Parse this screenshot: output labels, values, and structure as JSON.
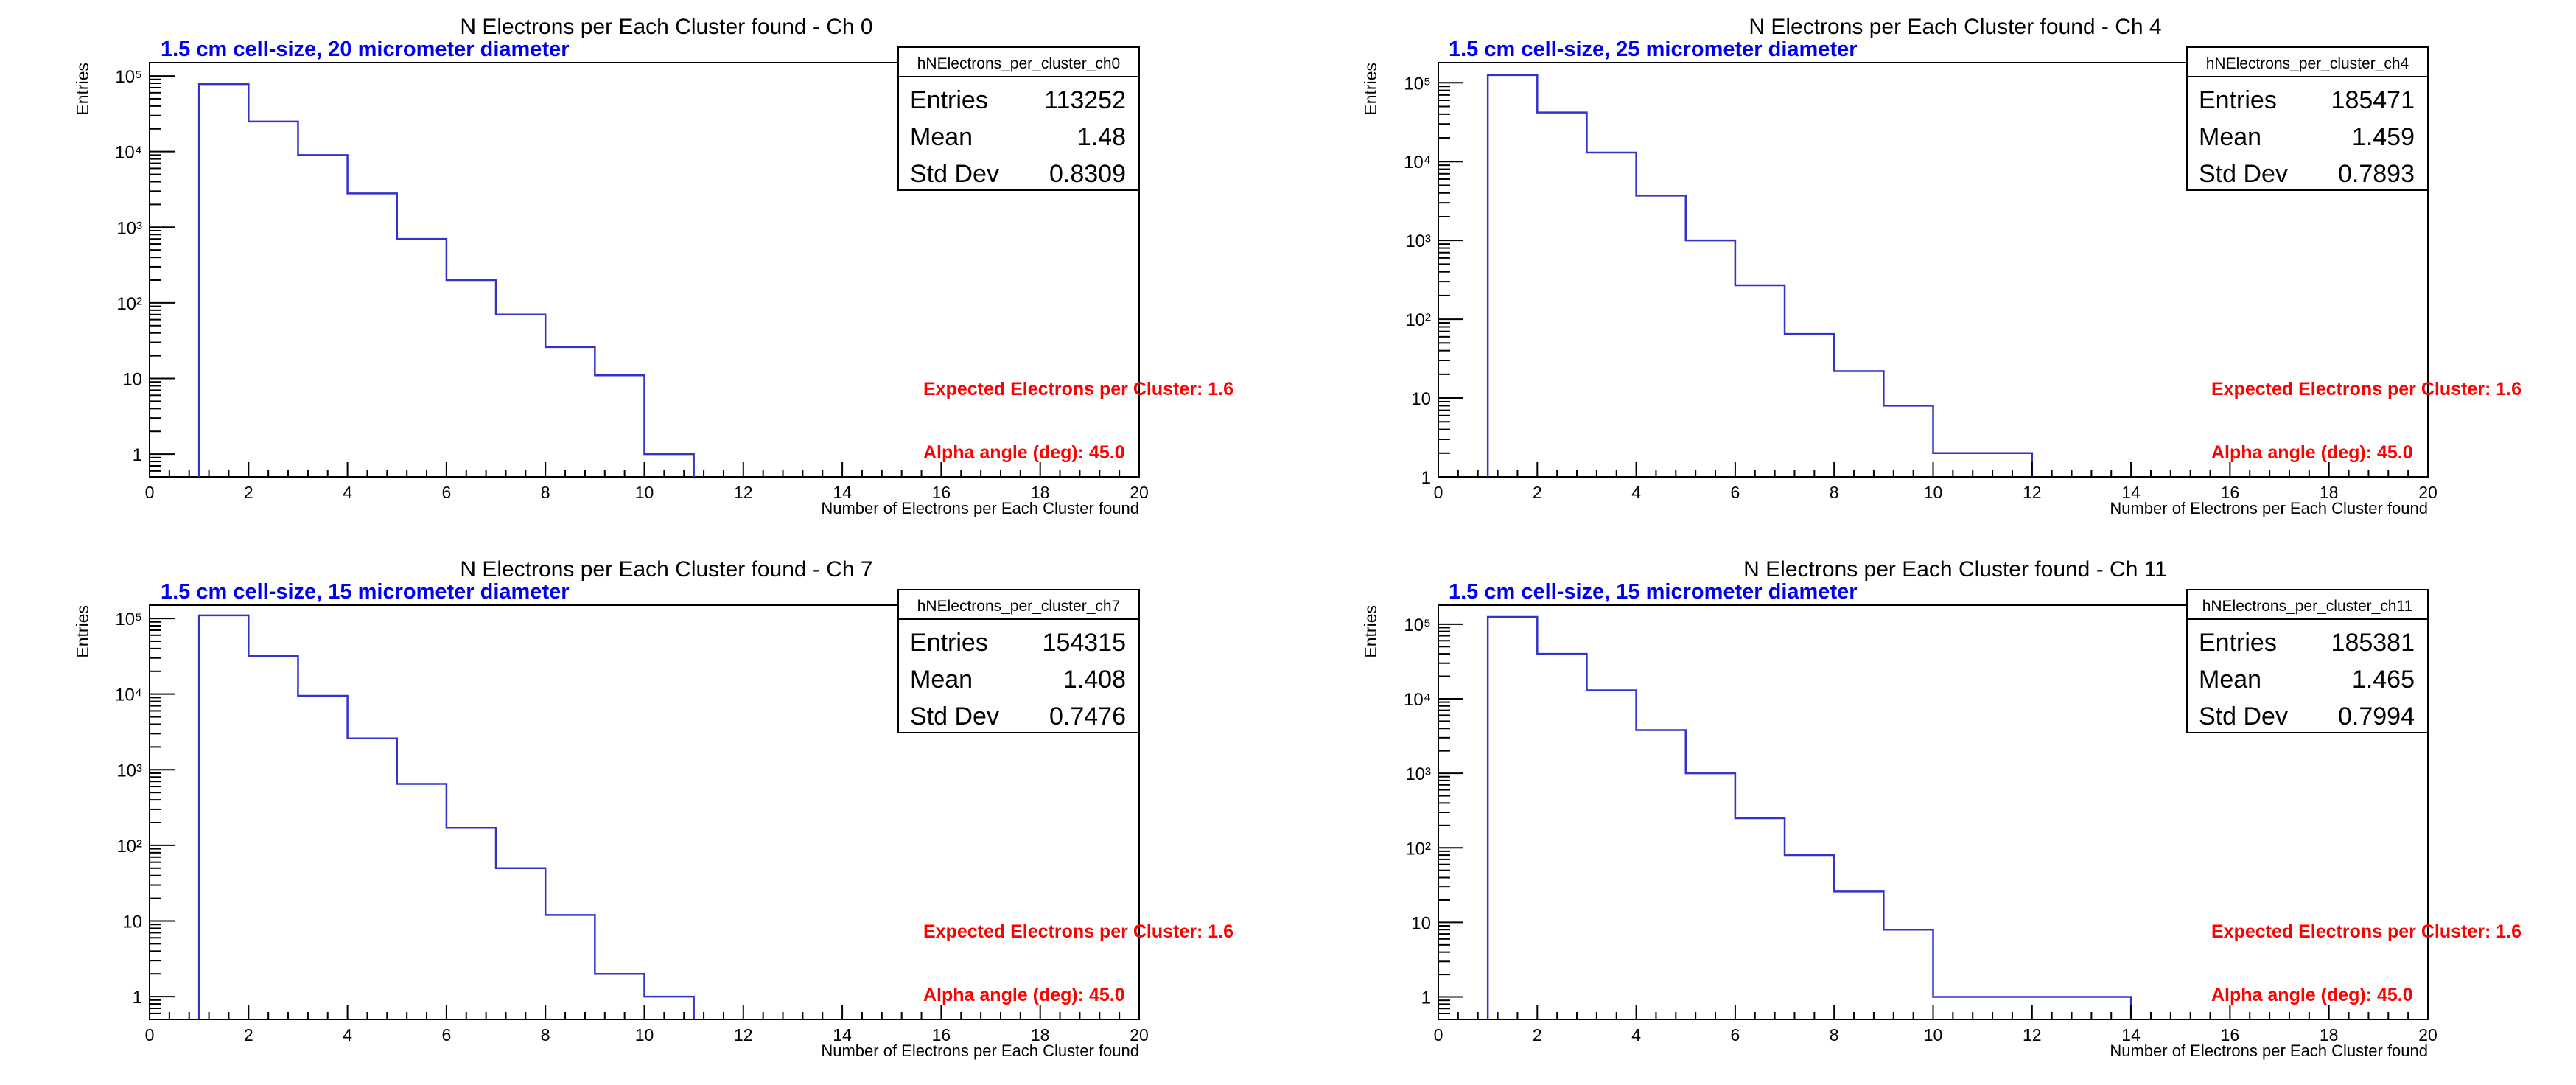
{
  "chart_data": [
    {
      "type": "histogram",
      "title": "N Electrons per Each Cluster found - Ch 0",
      "subtitle": "1.5 cm cell-size, 20 micrometer diameter",
      "xlabel": "Number of Electrons per Each Cluster found",
      "ylabel": "Entries",
      "log_y": true,
      "xlim": [
        0,
        20
      ],
      "ylim": [
        0.5,
        150000
      ],
      "x_ticks": [
        "0",
        "2",
        "4",
        "6",
        "8",
        "10",
        "12",
        "14",
        "16",
        "18",
        "20"
      ],
      "y_ticks": [
        {
          "value": 1,
          "label": "1"
        },
        {
          "value": 10,
          "label": "10"
        },
        {
          "value": 100,
          "label": "10²"
        },
        {
          "value": 1000,
          "label": "10³"
        },
        {
          "value": 10000,
          "label": "10⁴"
        },
        {
          "value": 100000,
          "label": "10⁵"
        }
      ],
      "bins": [
        {
          "x0": 1,
          "x1": 2,
          "value": 78000
        },
        {
          "x0": 2,
          "x1": 3,
          "value": 25000
        },
        {
          "x0": 3,
          "x1": 4,
          "value": 9000
        },
        {
          "x0": 4,
          "x1": 5,
          "value": 2800
        },
        {
          "x0": 5,
          "x1": 6,
          "value": 700
        },
        {
          "x0": 6,
          "x1": 7,
          "value": 200
        },
        {
          "x0": 7,
          "x1": 8,
          "value": 70
        },
        {
          "x0": 8,
          "x1": 9,
          "value": 26
        },
        {
          "x0": 9,
          "x1": 10,
          "value": 11
        },
        {
          "x0": 10,
          "x1": 11,
          "value": 1
        }
      ],
      "stats": {
        "name": "hNElectrons_per_cluster_ch0",
        "rows": [
          {
            "label": "Entries",
            "value": "113252"
          },
          {
            "label": "Mean",
            "value": "1.48"
          },
          {
            "label": "Std Dev",
            "value": "0.8309"
          }
        ]
      },
      "annotations": [
        "Expected Electrons per Cluster: 1.6",
        "Alpha angle (deg): 45.0"
      ]
    },
    {
      "type": "histogram",
      "title": "N Electrons per Each Cluster found - Ch 4",
      "subtitle": "1.5 cm cell-size, 25 micrometer diameter",
      "xlabel": "Number of Electrons per Each Cluster found",
      "ylabel": "Entries",
      "log_y": true,
      "xlim": [
        0,
        20
      ],
      "ylim": [
        1,
        180000
      ],
      "x_ticks": [
        "0",
        "2",
        "4",
        "6",
        "8",
        "10",
        "12",
        "14",
        "16",
        "18",
        "20"
      ],
      "y_ticks": [
        {
          "value": 1,
          "label": "1"
        },
        {
          "value": 10,
          "label": "10"
        },
        {
          "value": 100,
          "label": "10²"
        },
        {
          "value": 1000,
          "label": "10³"
        },
        {
          "value": 10000,
          "label": "10⁴"
        },
        {
          "value": 100000,
          "label": "10⁵"
        }
      ],
      "bins": [
        {
          "x0": 1,
          "x1": 2,
          "value": 125000
        },
        {
          "x0": 2,
          "x1": 3,
          "value": 42000
        },
        {
          "x0": 3,
          "x1": 4,
          "value": 13000
        },
        {
          "x0": 4,
          "x1": 5,
          "value": 3700
        },
        {
          "x0": 5,
          "x1": 6,
          "value": 1000
        },
        {
          "x0": 6,
          "x1": 7,
          "value": 270
        },
        {
          "x0": 7,
          "x1": 8,
          "value": 65
        },
        {
          "x0": 8,
          "x1": 9,
          "value": 22
        },
        {
          "x0": 9,
          "x1": 10,
          "value": 8
        },
        {
          "x0": 10,
          "x1": 11,
          "value": 2
        },
        {
          "x0": 11,
          "x1": 12,
          "value": 2
        }
      ],
      "stats": {
        "name": "hNElectrons_per_cluster_ch4",
        "rows": [
          {
            "label": "Entries",
            "value": "185471"
          },
          {
            "label": "Mean",
            "value": "1.459"
          },
          {
            "label": "Std Dev",
            "value": "0.7893"
          }
        ]
      },
      "annotations": [
        "Expected Electrons per Cluster: 1.6",
        "Alpha angle (deg): 45.0"
      ]
    },
    {
      "type": "histogram",
      "title": "N Electrons per Each Cluster found - Ch 7",
      "subtitle": "1.5 cm cell-size, 15 micrometer diameter",
      "xlabel": "Number of Electrons per Each Cluster found",
      "ylabel": "Entries",
      "log_y": true,
      "xlim": [
        0,
        20
      ],
      "ylim": [
        0.5,
        150000
      ],
      "x_ticks": [
        "0",
        "2",
        "4",
        "6",
        "8",
        "10",
        "12",
        "14",
        "16",
        "18",
        "20"
      ],
      "y_ticks": [
        {
          "value": 1,
          "label": "1"
        },
        {
          "value": 10,
          "label": "10"
        },
        {
          "value": 100,
          "label": "10²"
        },
        {
          "value": 1000,
          "label": "10³"
        },
        {
          "value": 10000,
          "label": "10⁴"
        },
        {
          "value": 100000,
          "label": "10⁵"
        }
      ],
      "bins": [
        {
          "x0": 1,
          "x1": 2,
          "value": 110000
        },
        {
          "x0": 2,
          "x1": 3,
          "value": 32000
        },
        {
          "x0": 3,
          "x1": 4,
          "value": 9500
        },
        {
          "x0": 4,
          "x1": 5,
          "value": 2600
        },
        {
          "x0": 5,
          "x1": 6,
          "value": 650
        },
        {
          "x0": 6,
          "x1": 7,
          "value": 170
        },
        {
          "x0": 7,
          "x1": 8,
          "value": 50
        },
        {
          "x0": 8,
          "x1": 9,
          "value": 12
        },
        {
          "x0": 9,
          "x1": 10,
          "value": 2
        },
        {
          "x0": 10,
          "x1": 11,
          "value": 1
        }
      ],
      "stats": {
        "name": "hNElectrons_per_cluster_ch7",
        "rows": [
          {
            "label": "Entries",
            "value": "154315"
          },
          {
            "label": "Mean",
            "value": "1.408"
          },
          {
            "label": "Std Dev",
            "value": "0.7476"
          }
        ]
      },
      "annotations": [
        "Expected Electrons per Cluster: 1.6",
        "Alpha angle (deg): 45.0"
      ]
    },
    {
      "type": "histogram",
      "title": "N Electrons per Each Cluster found - Ch 11",
      "subtitle": "1.5 cm cell-size, 15 micrometer diameter",
      "xlabel": "Number of Electrons per Each Cluster found",
      "ylabel": "Entries",
      "log_y": true,
      "xlim": [
        0,
        20
      ],
      "ylim": [
        0.5,
        180000
      ],
      "x_ticks": [
        "0",
        "2",
        "4",
        "6",
        "8",
        "10",
        "12",
        "14",
        "16",
        "18",
        "20"
      ],
      "y_ticks": [
        {
          "value": 1,
          "label": "1"
        },
        {
          "value": 10,
          "label": "10"
        },
        {
          "value": 100,
          "label": "10²"
        },
        {
          "value": 1000,
          "label": "10³"
        },
        {
          "value": 10000,
          "label": "10⁴"
        },
        {
          "value": 100000,
          "label": "10⁵"
        }
      ],
      "bins": [
        {
          "x0": 1,
          "x1": 2,
          "value": 125000
        },
        {
          "x0": 2,
          "x1": 3,
          "value": 40000
        },
        {
          "x0": 3,
          "x1": 4,
          "value": 13000
        },
        {
          "x0": 4,
          "x1": 5,
          "value": 3800
        },
        {
          "x0": 5,
          "x1": 6,
          "value": 1000
        },
        {
          "x0": 6,
          "x1": 7,
          "value": 250
        },
        {
          "x0": 7,
          "x1": 8,
          "value": 80
        },
        {
          "x0": 8,
          "x1": 9,
          "value": 26
        },
        {
          "x0": 9,
          "x1": 10,
          "value": 8
        },
        {
          "x0": 10,
          "x1": 11,
          "value": 1
        },
        {
          "x0": 11,
          "x1": 12,
          "value": 1
        },
        {
          "x0": 12,
          "x1": 13,
          "value": 1
        },
        {
          "x0": 13,
          "x1": 14,
          "value": 1
        }
      ],
      "stats": {
        "name": "hNElectrons_per_cluster_ch11",
        "rows": [
          {
            "label": "Entries",
            "value": "185381"
          },
          {
            "label": "Mean",
            "value": "1.465"
          },
          {
            "label": "Std Dev",
            "value": "0.7994"
          }
        ]
      },
      "annotations": [
        "Expected Electrons per Cluster: 1.6",
        "Alpha angle (deg): 45.0"
      ]
    }
  ],
  "colors": {
    "histogram_line": "#3333cc",
    "subtitle": "#0000ee",
    "annotation": "#ff0000",
    "axis": "#000000"
  }
}
